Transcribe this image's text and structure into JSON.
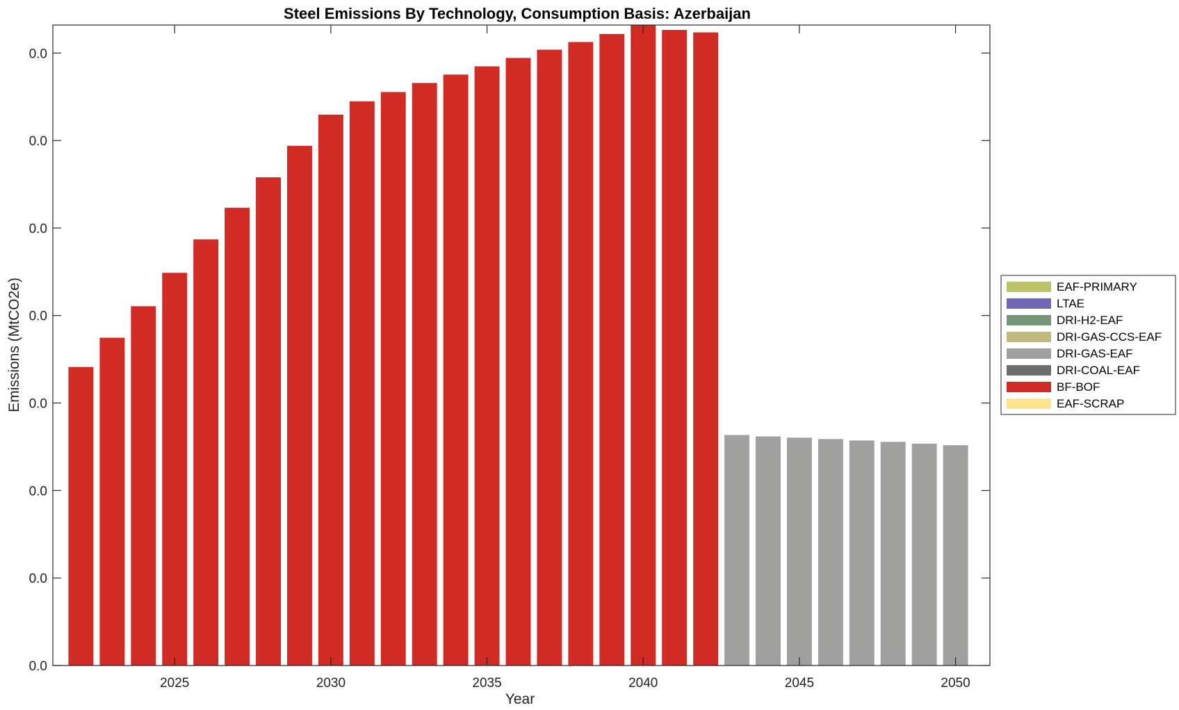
{
  "chart_data": {
    "type": "bar",
    "stacked": true,
    "title": "Steel Emissions By Technology, Consumption Basis: Azerbaijan",
    "xlabel": "Year",
    "ylabel": "Emissions (MtCO2e)",
    "x": [
      2022,
      2023,
      2024,
      2025,
      2026,
      2027,
      2028,
      2029,
      2030,
      2031,
      2032,
      2033,
      2034,
      2035,
      2036,
      2037,
      2038,
      2039,
      2040,
      2041,
      2042,
      2043,
      2044,
      2045,
      2046,
      2047,
      2048,
      2049,
      2050
    ],
    "xlim": [
      2021.1,
      2051.1
    ],
    "x_ticks": [
      "2025",
      "2030",
      "2035",
      "2040",
      "2045",
      "2050"
    ],
    "y_tick_labels": [
      "0.0",
      "0.0",
      "0.0",
      "0.0",
      "0.0",
      "0.0",
      "0.0",
      "0.0"
    ],
    "ylim": [
      0,
      0.0366
    ],
    "y_tick_step": 0.005,
    "grid": false,
    "legend_position": "right",
    "series": [
      {
        "name": "EAF-PRIMARY",
        "color": "#bcc46a",
        "values": [
          0,
          0,
          0,
          0,
          0,
          0,
          0,
          0,
          0,
          0,
          0,
          0,
          0,
          0,
          0,
          0,
          0,
          0,
          0,
          0,
          0,
          0,
          0,
          0,
          0,
          0,
          0,
          0,
          0
        ]
      },
      {
        "name": "LTAE",
        "color": "#7068b6",
        "values": [
          0,
          0,
          0,
          0,
          0,
          0,
          0,
          0,
          0,
          0,
          0,
          0,
          0,
          0,
          0,
          0,
          0,
          0,
          0,
          0,
          0,
          0,
          0,
          0,
          0,
          0,
          0,
          0,
          0
        ]
      },
      {
        "name": "DRI-H2-EAF",
        "color": "#76967a",
        "values": [
          0,
          0,
          0,
          0,
          0,
          0,
          0,
          0,
          0,
          0,
          0,
          0,
          0,
          0,
          0,
          0,
          0,
          0,
          0,
          0,
          0,
          0,
          0,
          0,
          0,
          0,
          0,
          0,
          0
        ]
      },
      {
        "name": "DRI-GAS-CCS-EAF",
        "color": "#c0b87c",
        "values": [
          0,
          0,
          0,
          0,
          0,
          0,
          0,
          0,
          0,
          0,
          0,
          0,
          0,
          0,
          0,
          0,
          0,
          0,
          0,
          0,
          0,
          0,
          0,
          0,
          0,
          0,
          0,
          0,
          0
        ]
      },
      {
        "name": "DRI-GAS-EAF",
        "color": "#a0a09e",
        "values": [
          0,
          0,
          0,
          0,
          0,
          0,
          0,
          0,
          0,
          0,
          0,
          0,
          0,
          0,
          0,
          0,
          0,
          0,
          0,
          0,
          0,
          0.01317,
          0.01309,
          0.01302,
          0.01294,
          0.01286,
          0.01278,
          0.01268,
          0.01259
        ]
      },
      {
        "name": "DRI-COAL-EAF",
        "color": "#6e6e6e",
        "values": [
          0,
          0,
          0,
          0,
          0,
          0,
          0,
          0,
          0,
          0,
          0,
          0,
          0,
          0,
          0,
          0,
          0,
          0,
          0,
          0,
          0,
          0,
          0,
          0,
          0,
          0,
          0,
          0,
          0
        ]
      },
      {
        "name": "BF-BOF",
        "color": "#d12b25",
        "values": [
          0.01706,
          0.01873,
          0.02053,
          0.02244,
          0.02435,
          0.02616,
          0.0279,
          0.0297,
          0.03148,
          0.03224,
          0.03277,
          0.03329,
          0.03377,
          0.03424,
          0.03472,
          0.03519,
          0.03563,
          0.03609,
          0.0366,
          0.03632,
          0.03618,
          0,
          0,
          0,
          0,
          0,
          0,
          0,
          0
        ]
      },
      {
        "name": "EAF-SCRAP",
        "color": "#fde38e",
        "values": [
          0,
          0,
          0,
          0,
          0,
          0,
          0,
          0,
          0,
          0,
          0,
          0,
          0,
          0,
          0,
          0,
          0,
          0,
          0,
          0,
          0,
          0,
          0,
          0,
          0,
          0,
          0,
          0,
          0
        ]
      }
    ],
    "bar_width": 0.8
  }
}
